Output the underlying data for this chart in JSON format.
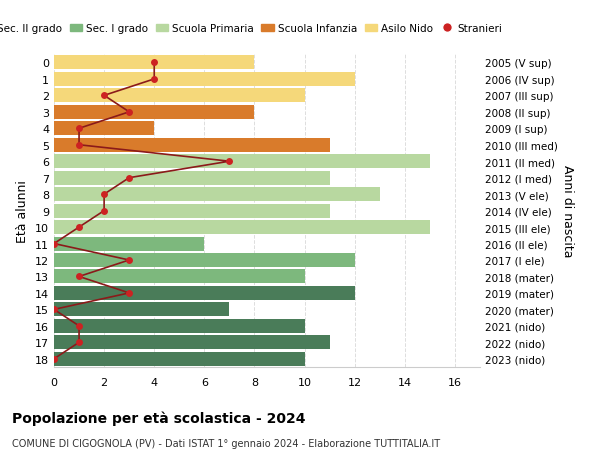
{
  "ages": [
    18,
    17,
    16,
    15,
    14,
    13,
    12,
    11,
    10,
    9,
    8,
    7,
    6,
    5,
    4,
    3,
    2,
    1,
    0
  ],
  "years": [
    "2005 (V sup)",
    "2006 (IV sup)",
    "2007 (III sup)",
    "2008 (II sup)",
    "2009 (I sup)",
    "2010 (III med)",
    "2011 (II med)",
    "2012 (I med)",
    "2013 (V ele)",
    "2014 (IV ele)",
    "2015 (III ele)",
    "2016 (II ele)",
    "2017 (I ele)",
    "2018 (mater)",
    "2019 (mater)",
    "2020 (mater)",
    "2021 (nido)",
    "2022 (nido)",
    "2023 (nido)"
  ],
  "bar_values": [
    10,
    11,
    10,
    7,
    12,
    10,
    12,
    6,
    15,
    11,
    13,
    11,
    15,
    11,
    4,
    8,
    10,
    12,
    8
  ],
  "bar_colors": [
    "#4a7c59",
    "#4a7c59",
    "#4a7c59",
    "#4a7c59",
    "#4a7c59",
    "#7db87d",
    "#7db87d",
    "#7db87d",
    "#b8d8a0",
    "#b8d8a0",
    "#b8d8a0",
    "#b8d8a0",
    "#b8d8a0",
    "#d97b2b",
    "#d97b2b",
    "#d97b2b",
    "#f5d87a",
    "#f5d87a",
    "#f5d87a"
  ],
  "stranieri_x": [
    0,
    1,
    1,
    0,
    3,
    1,
    3,
    0,
    1,
    2,
    2,
    3,
    7,
    1,
    1,
    3,
    2,
    4,
    4
  ],
  "stranieri_color": "#8b1a1a",
  "stranieri_marker_color": "#cc2222",
  "xlim": [
    0,
    17
  ],
  "ylabel_left": "Età alunni",
  "ylabel_right": "Anni di nascita",
  "title": "Popolazione per età scolastica - 2024",
  "subtitle": "COMUNE DI CIGOGNOLA (PV) - Dati ISTAT 1° gennaio 2024 - Elaborazione TUTTITALIA.IT",
  "legend_labels": [
    "Sec. II grado",
    "Sec. I grado",
    "Scuola Primaria",
    "Scuola Infanzia",
    "Asilo Nido",
    "Stranieri"
  ],
  "legend_colors": [
    "#4a7c59",
    "#7db87d",
    "#b8d8a0",
    "#d97b2b",
    "#f5d87a",
    "#cc2222"
  ],
  "background_color": "#ffffff",
  "grid_color": "#dddddd"
}
